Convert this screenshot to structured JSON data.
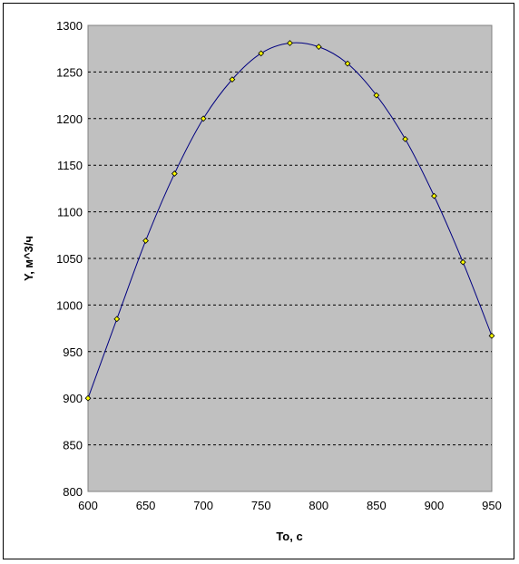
{
  "chart_data": {
    "type": "scatter",
    "title": "",
    "xlabel": "To, c",
    "ylabel": "Y, м^3/ч",
    "xlim": [
      600,
      950
    ],
    "ylim": [
      800,
      1300
    ],
    "xticks": [
      600,
      650,
      700,
      750,
      800,
      850,
      900,
      950
    ],
    "yticks": [
      800,
      850,
      900,
      950,
      1000,
      1050,
      1100,
      1150,
      1200,
      1250,
      1300
    ],
    "grid": "horizontal dashed",
    "legend": "none",
    "colors": {
      "plot_background": "#c0c0c0",
      "line": "#000080",
      "marker_fill": "#ffff00",
      "marker_edge": "#000000",
      "grid": "#000000"
    },
    "series": [
      {
        "style": "points with smooth line",
        "x": [
          600,
          625,
          650,
          675,
          700,
          725,
          750,
          775,
          800,
          825,
          850,
          875,
          900,
          925,
          950
        ],
        "y": [
          900,
          985,
          1069,
          1141,
          1200,
          1242,
          1270,
          1281,
          1277,
          1259,
          1225,
          1178,
          1117,
          1046,
          967
        ]
      }
    ]
  }
}
